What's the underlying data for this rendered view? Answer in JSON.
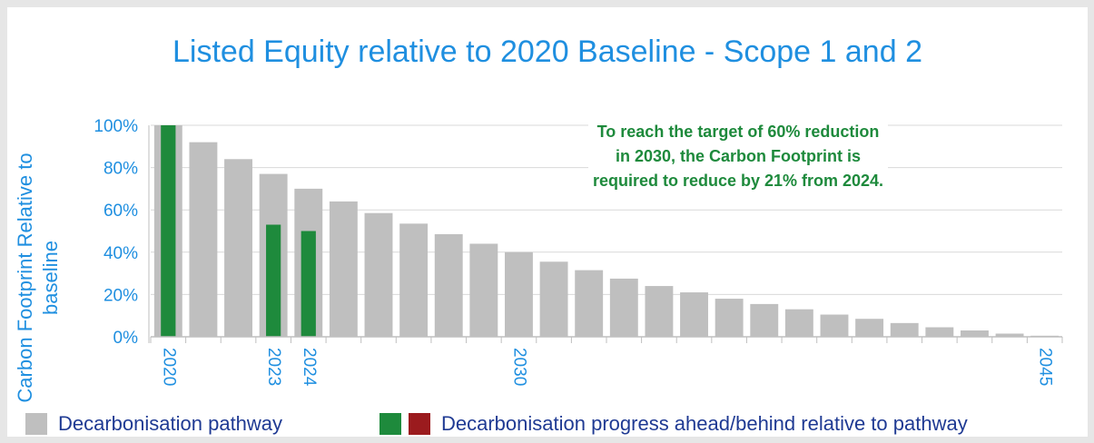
{
  "chart_data": {
    "type": "bar",
    "title": "Listed Equity relative to 2020 Baseline - Scope 1 and 2",
    "ylabel": "Carbon Footprint Relative to baseline",
    "xlabel": "",
    "ylim": [
      0,
      100
    ],
    "yticks": [
      "0%",
      "20%",
      "40%",
      "60%",
      "80%",
      "100%"
    ],
    "grid": "horizontal",
    "categories": [
      2020,
      2021,
      2022,
      2023,
      2024,
      2025,
      2026,
      2027,
      2028,
      2029,
      2030,
      2031,
      2032,
      2033,
      2034,
      2035,
      2036,
      2037,
      2038,
      2039,
      2040,
      2041,
      2042,
      2043,
      2044,
      2045
    ],
    "xtick_labels": {
      "2020": "2020",
      "2023": "2023",
      "2024": "2024",
      "2030": "2030",
      "2045": "2045"
    },
    "series": [
      {
        "name": "Decarbonisation pathway",
        "color": "#bfbfbf",
        "values": [
          100,
          92,
          84,
          77,
          70,
          64,
          58.5,
          53.5,
          48.5,
          44,
          40,
          35.5,
          31.5,
          27.5,
          24,
          21,
          18,
          15.5,
          13,
          10.5,
          8.5,
          6.5,
          4.5,
          3,
          1.5,
          0.5
        ]
      },
      {
        "name": "Decarbonisation progress ahead/behind relative to pathway",
        "colors": [
          "#1e8a3c",
          "#9b1b1e"
        ],
        "points": [
          {
            "year": 2020,
            "value": 100
          },
          {
            "year": 2023,
            "value": 53
          },
          {
            "year": 2024,
            "value": 50
          }
        ]
      }
    ],
    "annotation": "To reach the target of 60% reduction in 2030, the Carbon Footprint is required to reduce by 21% from 2024.",
    "legend_position": "bottom"
  },
  "legend": {
    "pathway_label": "Decarbonisation pathway",
    "progress_label": "Decarbonisation progress ahead/behind relative to pathway"
  }
}
